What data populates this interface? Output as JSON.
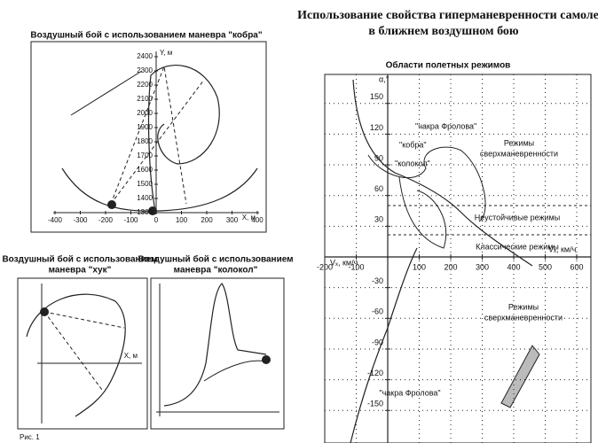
{
  "header": {
    "lines": [
      "Использование свойства гиперманевренности самоле",
      "в ближнем воздушном бою"
    ]
  },
  "panels": [
    {
      "title": [
        "Воздушный бой с использованием маневра \"кобра\""
      ],
      "x_label": "X, м",
      "y_label": "Y, м",
      "xticks": [
        -400,
        -300,
        -200,
        -100,
        0,
        100,
        200,
        300,
        400
      ],
      "yticks": [
        1300,
        1400,
        1500,
        1600,
        1700,
        1800,
        1900,
        2000,
        2100,
        2200,
        2300,
        2400
      ]
    },
    {
      "title": [
        "Воздушный бой с использованием",
        "маневра \"хук\""
      ],
      "x_label": "X, м"
    },
    {
      "title": [
        "Воздушный бой с использованием",
        "маневра \"колокол\""
      ]
    }
  ],
  "regimes": {
    "title": "Области полетных режимов",
    "y_label": "α,°",
    "x_label_left": "Vₓ, км/ч",
    "x_label_right": "Vₓ, км/ч",
    "xticks": [
      -200,
      -100,
      100,
      200,
      300,
      400,
      500,
      600
    ],
    "yticks": [
      150,
      120,
      90,
      60,
      30,
      -30,
      -60,
      -90,
      -120,
      -150
    ],
    "labels": {
      "chakra_top": "\"чакра Фролова\"",
      "cobra": "\"кобра\"",
      "kolokol": "\"колокол\"",
      "super_top": [
        "Режимы",
        "сверхманевренности"
      ],
      "unstable": "Неустойчивые режимы",
      "classic": "Классические режимы",
      "super_bottom": [
        "Режимы",
        "сверхманевренности"
      ],
      "chakra_bottom": "\"чакра Фролова\""
    }
  },
  "caption": "Рис. 1"
}
